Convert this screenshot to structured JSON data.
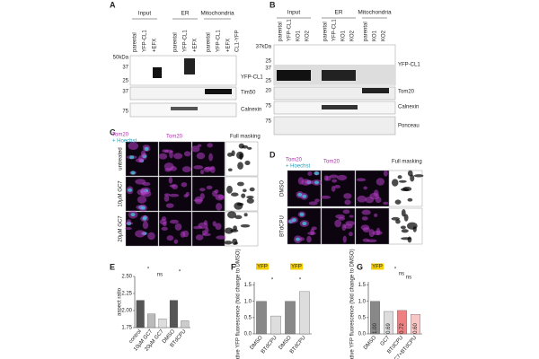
{
  "figure": {
    "letters": [
      "A",
      "B",
      "C",
      "D",
      "E",
      "F",
      "G"
    ],
    "panel_a": {
      "groups": [
        "Input",
        "ER",
        "Mitochondria"
      ],
      "lanes": [
        "parental",
        "YFP-CL1",
        "+EFX",
        "parental",
        "YFP-CL1",
        "+EFX",
        "parental",
        "YFP-CL1",
        "+EFX"
      ],
      "tag": "CL1-YFP",
      "markers": [
        "50kDa",
        "37",
        "25",
        "37",
        "75"
      ],
      "bands": [
        "YFP-CL1",
        "Tim50",
        "Calnexin"
      ]
    },
    "panel_b": {
      "groups": [
        "Input",
        "ER",
        "Mitochondria"
      ],
      "lanes": [
        "parental",
        "YFP-CL1",
        "KO1",
        "KO2",
        "parental",
        "YFP-CL1",
        "KO1",
        "KO2",
        "parental",
        "KO1",
        "KO2"
      ],
      "markers": [
        "37kDa",
        "25",
        "37",
        "25",
        "20",
        "75",
        "75"
      ],
      "bands": [
        "YFP-CL1",
        "Tom20",
        "Calnexin",
        "Ponceau"
      ]
    },
    "panel_c": {
      "stain": "Tom20",
      "counterstain": "+ Hoechst",
      "single": "Tom20",
      "mask": "Full masking",
      "rows": [
        "untreated",
        "10µM GC7",
        "20µM GC7"
      ]
    },
    "panel_d": {
      "stain": "Tom20",
      "counterstain": "+ Hoechst",
      "single": "Tom20",
      "mask": "Full masking",
      "rows": [
        "DMSO",
        "BTdCPU"
      ]
    }
  },
  "chart_data": [
    {
      "type": "bar",
      "ylabel": "aspect ratio",
      "categories": [
        "control",
        "10µM GC7",
        "20µM GC7",
        "DMSO",
        "BTdCPU"
      ],
      "values": [
        2.15,
        1.95,
        1.88,
        2.15,
        1.85
      ],
      "colors": [
        "#555555",
        "#bbbbbb",
        "#dddddd",
        "#555555",
        "#cccccc"
      ],
      "ylim": [
        1.75,
        2.5
      ],
      "yticks": [
        1.75,
        {
          "value": 2,
          "label": "2.00"
        },
        2.25,
        {
          "value": 2.5,
          "label": "2.50"
        }
      ],
      "annotations": [
        "*",
        "ns",
        "*"
      ]
    },
    {
      "type": "bar",
      "ylabel": "relative YFP fluorescence (fold change to DMSO)",
      "categories": [
        "DMSO",
        "BTdCPU",
        "DMSO",
        "BTdCPU"
      ],
      "values": [
        1.0,
        0.55,
        1.0,
        1.3
      ],
      "colors": [
        "#888888",
        "#dddddd",
        "#888888",
        "#dddddd"
      ],
      "ylim": [
        0,
        1.6
      ],
      "yticks": [
        {
          "value": 0,
          "label": "0.0"
        },
        0.5,
        {
          "value": 1,
          "label": "1.0"
        },
        1.5
      ],
      "annotations": [
        "*",
        "*"
      ],
      "tags": [
        "YFP",
        "YFP"
      ]
    },
    {
      "type": "bar",
      "ylabel": "relative YFP fluorescence (fold change to DMSO)",
      "categories": [
        "DMSO",
        "GC7",
        "BTdCPU",
        "GC7+BTdCPU"
      ],
      "values": [
        1.0,
        0.69,
        0.72,
        0.6
      ],
      "value_labels": [
        "1.00",
        "0.69",
        "0.72",
        "0.60"
      ],
      "colors": [
        "#888888",
        "#dddddd",
        "#f08080",
        "#f7c6c6"
      ],
      "ylim": [
        0,
        1.6
      ],
      "yticks": [
        {
          "value": 0,
          "label": "0.0"
        },
        0.5,
        {
          "value": 1,
          "label": "1.0"
        },
        1.5
      ],
      "annotations": [
        "*",
        "ns",
        "ns"
      ],
      "tags": [
        "YFP"
      ]
    }
  ]
}
